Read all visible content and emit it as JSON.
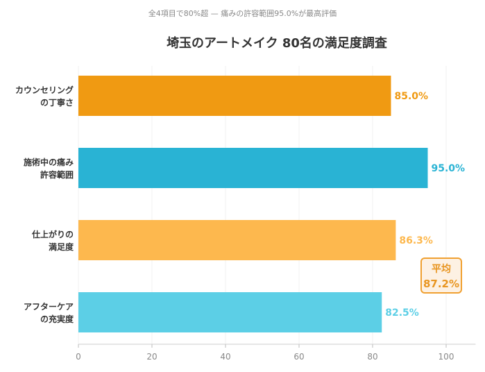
{
  "chart_data": {
    "type": "bar",
    "orientation": "horizontal",
    "title": "埼玉のアートメイク 80名の満足度調査",
    "subtitle": "全4項目で80%超 — 痛みの許容範囲95.0%が最高評価",
    "categories": [
      [
        "カウンセリング",
        "の丁寧さ"
      ],
      [
        "施術中の痛み",
        "許容範囲"
      ],
      [
        "仕上がりの",
        "満足度"
      ],
      [
        "アフターケア",
        "の充実度"
      ]
    ],
    "values": [
      85.0,
      95.0,
      86.3,
      82.5
    ],
    "value_labels": [
      "85.0%",
      "95.0%",
      "86.3%",
      "82.5%"
    ],
    "colors": [
      "#f09a12",
      "#29b3d4",
      "#fdb84e",
      "#5ccfe6"
    ],
    "xlim": [
      0,
      108
    ],
    "xticks": [
      0,
      20,
      40,
      60,
      80,
      100
    ],
    "xlabel": "",
    "ylabel": "",
    "grid": true,
    "annotation": {
      "label": "平均",
      "value": "87.2%"
    }
  }
}
